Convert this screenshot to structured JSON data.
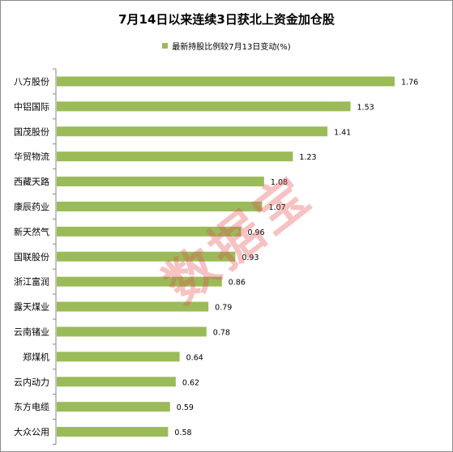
{
  "chart_data": {
    "type": "bar",
    "orientation": "horizontal",
    "title": "7月14日以来连续3日获北上资金加仓股",
    "categories": [
      "八方股份",
      "中铝国际",
      "国茂股份",
      "华贸物流",
      "西藏天路",
      "康辰药业",
      "新天然气",
      "国联股份",
      "浙江富润",
      "露天煤业",
      "云南锗业",
      "郑煤机",
      "云内动力",
      "东方电缆",
      "大众公用"
    ],
    "series": [
      {
        "name": "最新持股比例较7月13日变动(%)",
        "values": [
          1.76,
          1.53,
          1.41,
          1.23,
          1.08,
          1.07,
          0.96,
          0.93,
          0.86,
          0.79,
          0.78,
          0.64,
          0.62,
          0.59,
          0.58
        ]
      }
    ],
    "value_labels": [
      "1.76",
      "1.53",
      "1.41",
      "1.23",
      "1.08",
      "1.07",
      "0.96",
      "0.93",
      "0.86",
      "0.79",
      "0.78",
      "0.64",
      "0.62",
      "0.59",
      "0.58"
    ],
    "xlim": [
      0,
      2.0
    ],
    "grid": false,
    "legend_position": "top-center",
    "bar_color": "#9bbb59"
  },
  "watermark": {
    "text": "数据宝"
  }
}
